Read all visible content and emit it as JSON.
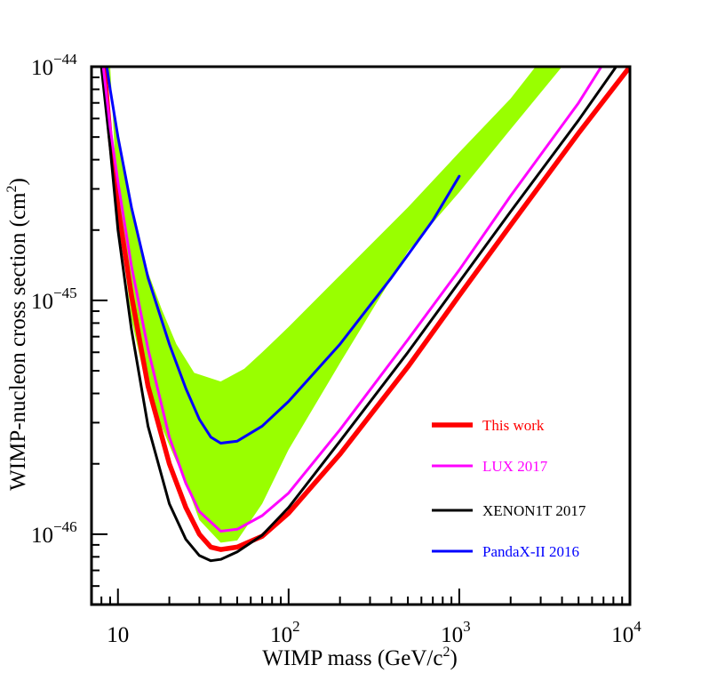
{
  "chart_data": {
    "type": "line",
    "title": "",
    "xlabel": {
      "base": "WIMP mass (GeV/c",
      "sup": "2",
      "tail": ")"
    },
    "ylabel": {
      "base": "WIMP-nucleon cross section (cm",
      "sup": "2",
      "tail": ")"
    },
    "x_scale": "log",
    "y_scale": "log",
    "xlim": [
      7,
      10000
    ],
    "ylim": [
      5e-47,
      1e-44
    ],
    "x_ticks": [
      {
        "value": 10,
        "base": "10",
        "exp": ""
      },
      {
        "value": 100,
        "base": "10",
        "exp": "2"
      },
      {
        "value": 1000,
        "base": "10",
        "exp": "3"
      },
      {
        "value": 10000,
        "base": "10",
        "exp": "4"
      }
    ],
    "y_ticks": [
      {
        "value": 1e-46,
        "base": "10",
        "exp": "−46"
      },
      {
        "value": 1e-45,
        "base": "10",
        "exp": "−45"
      },
      {
        "value": 1e-44,
        "base": "10",
        "exp": "−44"
      }
    ],
    "band": {
      "name": "sensitivity band",
      "color": "#99ff00",
      "upper": [
        [
          8.5,
          1e-44
        ],
        [
          10,
          5e-45
        ],
        [
          12,
          2.5e-45
        ],
        [
          15,
          1.32e-45
        ],
        [
          18,
          9.2e-46
        ],
        [
          22,
          6.5e-46
        ],
        [
          28,
          4.9e-46
        ],
        [
          40,
          4.5e-46
        ],
        [
          55,
          5.1e-46
        ],
        [
          70,
          6e-46
        ],
        [
          100,
          7.7e-46
        ],
        [
          200,
          1.28e-45
        ],
        [
          500,
          2.5e-45
        ],
        [
          1000,
          4.3e-45
        ],
        [
          2000,
          7.3e-45
        ],
        [
          2800,
          1e-44
        ]
      ],
      "lower": [
        [
          4000,
          1e-44
        ],
        [
          2000,
          5.4e-45
        ],
        [
          1000,
          2.9e-45
        ],
        [
          500,
          1.62e-45
        ],
        [
          200,
          5.4e-46
        ],
        [
          100,
          2.3e-46
        ],
        [
          70,
          1.35e-46
        ],
        [
          50,
          9.4e-47
        ],
        [
          40,
          9.2e-47
        ],
        [
          30,
          1.15e-46
        ],
        [
          25,
          1.65e-46
        ],
        [
          20,
          2.4e-46
        ],
        [
          15,
          4e-46
        ],
        [
          12,
          8.3e-46
        ],
        [
          10,
          2.4e-45
        ],
        [
          9,
          1e-44
        ]
      ]
    },
    "series": [
      {
        "name": "This work",
        "color": "#ff0000",
        "width": 5.5,
        "points": [
          [
            8.3,
            1e-44
          ],
          [
            9,
            5e-45
          ],
          [
            10,
            2.5e-45
          ],
          [
            12,
            1.05e-45
          ],
          [
            15,
            4.3e-46
          ],
          [
            20,
            2e-46
          ],
          [
            25,
            1.3e-46
          ],
          [
            30,
            1e-46
          ],
          [
            35,
            8.8e-47
          ],
          [
            40,
            8.6e-47
          ],
          [
            50,
            8.8e-47
          ],
          [
            70,
            9.8e-47
          ],
          [
            100,
            1.23e-46
          ],
          [
            200,
            2.2e-46
          ],
          [
            500,
            5.2e-46
          ],
          [
            1000,
            1.05e-45
          ],
          [
            2000,
            2.1e-45
          ],
          [
            5000,
            5.2e-45
          ],
          [
            10000,
            1e-44
          ]
        ]
      },
      {
        "name": "LUX 2017",
        "color": "#ff00ff",
        "width": 3,
        "points": [
          [
            8.2,
            1e-44
          ],
          [
            9,
            5.5e-45
          ],
          [
            10,
            3.2e-45
          ],
          [
            12,
            1.4e-45
          ],
          [
            15,
            6.2e-46
          ],
          [
            20,
            2.6e-46
          ],
          [
            25,
            1.65e-46
          ],
          [
            30,
            1.25e-46
          ],
          [
            40,
            1.03e-46
          ],
          [
            50,
            1.05e-46
          ],
          [
            70,
            1.2e-46
          ],
          [
            100,
            1.5e-46
          ],
          [
            200,
            2.8e-46
          ],
          [
            500,
            6.8e-46
          ],
          [
            1000,
            1.35e-45
          ],
          [
            2000,
            2.8e-45
          ],
          [
            5000,
            7e-45
          ],
          [
            6800,
            1e-44
          ]
        ]
      },
      {
        "name": "XENON1T 2017",
        "color": "#000000",
        "width": 3,
        "points": [
          [
            8,
            1e-44
          ],
          [
            9,
            4.5e-45
          ],
          [
            10,
            2e-45
          ],
          [
            12,
            7.5e-46
          ],
          [
            15,
            2.9e-46
          ],
          [
            20,
            1.35e-46
          ],
          [
            25,
            9.5e-47
          ],
          [
            30,
            8.1e-47
          ],
          [
            35,
            7.7e-47
          ],
          [
            40,
            7.8e-47
          ],
          [
            50,
            8.4e-47
          ],
          [
            70,
            9.9e-47
          ],
          [
            100,
            1.3e-46
          ],
          [
            200,
            2.5e-46
          ],
          [
            500,
            6e-46
          ],
          [
            1000,
            1.2e-45
          ],
          [
            2000,
            2.4e-45
          ],
          [
            5000,
            5.9e-45
          ],
          [
            8300,
            1e-44
          ]
        ]
      },
      {
        "name": "PandaX-II 2016",
        "color": "#0000ff",
        "width": 3,
        "points": [
          [
            8.6,
            1e-44
          ],
          [
            9,
            8e-45
          ],
          [
            10,
            5e-45
          ],
          [
            12,
            2.5e-45
          ],
          [
            15,
            1.25e-45
          ],
          [
            20,
            6.5e-46
          ],
          [
            25,
            4.2e-46
          ],
          [
            30,
            3.1e-46
          ],
          [
            35,
            2.6e-46
          ],
          [
            40,
            2.45e-46
          ],
          [
            50,
            2.5e-46
          ],
          [
            70,
            2.9e-46
          ],
          [
            100,
            3.7e-46
          ],
          [
            200,
            6.5e-46
          ],
          [
            400,
            1.25e-45
          ],
          [
            700,
            2.2e-45
          ],
          [
            1000,
            3.4e-45
          ]
        ]
      }
    ],
    "legend": {
      "placement": "bottom-right"
    }
  }
}
